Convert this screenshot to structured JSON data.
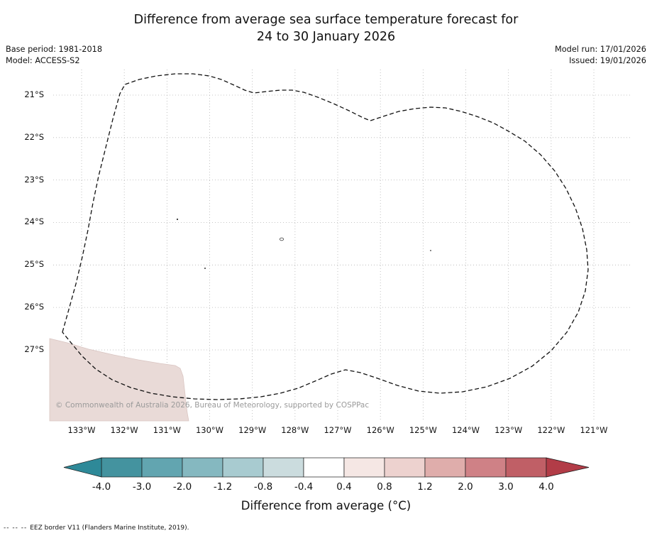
{
  "title": {
    "line1": "Difference from average sea surface temperature forecast for",
    "line2": "24 to 30 January 2026"
  },
  "meta": {
    "base_period": "Base period: 1981-2018",
    "model": "Model: ACCESS-S2",
    "model_run": "Model run: 17/01/2026",
    "issued": "Issued: 19/01/2026"
  },
  "map": {
    "lat_labels": [
      "21°S",
      "22°S",
      "23°S",
      "24°S",
      "25°S",
      "26°S",
      "27°S"
    ],
    "lon_labels": [
      "133°W",
      "132°W",
      "131°W",
      "130°W",
      "129°W",
      "128°W",
      "127°W",
      "126°W",
      "125°W",
      "124°W",
      "123°W",
      "122°W",
      "121°W"
    ],
    "copyright": "© Commonwealth of Australia 2026, Bureau of Meteorology, supported by COSPPac",
    "eez_color": "#111111",
    "land_color": "#e9dad7",
    "land_edge_color": "#d9c5c2",
    "grid_color": "#b3b3b3"
  },
  "colorbar": {
    "ticks": [
      "-4.0",
      "-3.0",
      "-2.0",
      "-1.2",
      "-0.8",
      "-0.4",
      "0.4",
      "0.8",
      "1.2",
      "2.0",
      "3.0",
      "4.0"
    ],
    "label": "Difference from average (°C)",
    "left_arrow_color": "#2e8998",
    "right_arrow_color": "#b23c47",
    "segment_colors": [
      "#44939f",
      "#62a5b0",
      "#85b8c0",
      "#a8cbd0",
      "#cbdcde",
      "#ffffff",
      "#f5e7e4",
      "#edd2cf",
      "#dfadab",
      "#cf8186",
      "#c05f66"
    ]
  },
  "footer": {
    "dashes": "--  --  --",
    "label": "EEZ border V11 (Flanders Marine Institute, 2019)."
  },
  "chart_data": {
    "type": "heatmap",
    "title": "Difference from average sea surface temperature forecast for 24 to 30 January 2026",
    "model": "ACCESS-S2",
    "base_period": "1981-2018",
    "model_run": "17/01/2026",
    "issued": "19/01/2026",
    "x_ticks": [
      "133°W",
      "132°W",
      "131°W",
      "130°W",
      "129°W",
      "128°W",
      "127°W",
      "126°W",
      "125°W",
      "124°W",
      "123°W",
      "122°W",
      "121°W"
    ],
    "y_ticks": [
      "21°S",
      "22°S",
      "23°S",
      "24°S",
      "25°S",
      "26°S",
      "27°S"
    ],
    "colorbar_label": "Difference from average (°C)",
    "colorbar_levels": [
      -4.0,
      -3.0,
      -2.0,
      -1.2,
      -0.8,
      -0.4,
      0.4,
      0.8,
      1.2,
      2.0,
      3.0,
      4.0
    ],
    "region_outline": "EEZ border V11 (dashed)",
    "observation": "SST anomaly over the entire mapped EEZ region falls in the -0.4 to 0.4 °C band (shown white); light shaded land/coast area appears in the lower-left corner"
  }
}
